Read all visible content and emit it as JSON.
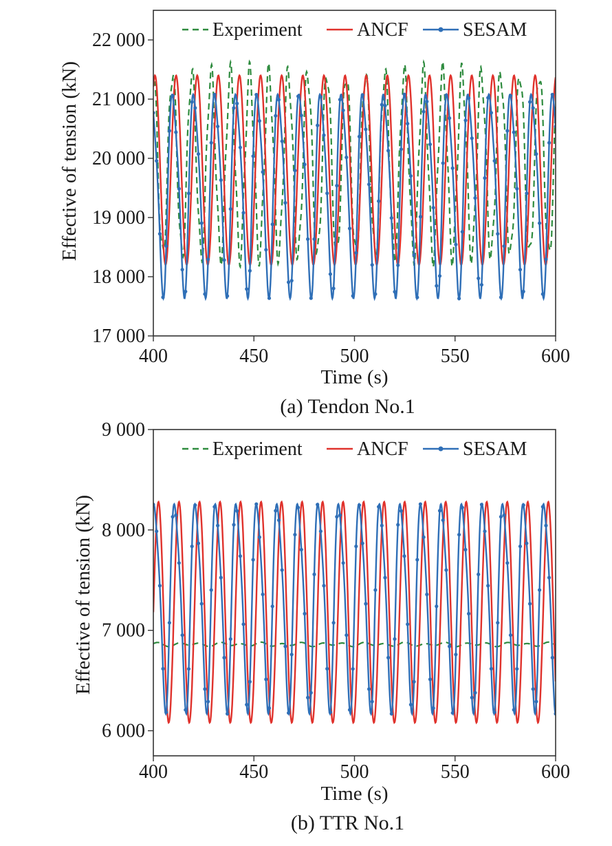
{
  "chart_data": [
    {
      "type": "line",
      "caption": "(a) Tendon No.1",
      "xlabel": "Time (s)",
      "ylabel": "Effective of tension (kN)",
      "xlim": [
        400,
        600
      ],
      "ylim": [
        17000,
        22500
      ],
      "xticks": [
        400,
        450,
        500,
        550,
        600
      ],
      "xtick_labels": [
        "400",
        "450",
        "500",
        "550",
        "600"
      ],
      "yticks": [
        17000,
        18000,
        19000,
        20000,
        21000,
        22000
      ],
      "ytick_labels": [
        "17 000",
        "18 000",
        "19 000",
        "20 000",
        "21 000",
        "22 000"
      ],
      "legend_position": "top",
      "series": [
        {
          "name": "Experiment",
          "style": "dashed",
          "color": "#2e8b3e",
          "mean": 19900,
          "amplitude": 1550,
          "period_s": 9.6,
          "phase_s": 2.5,
          "min": 18300,
          "max": 21500
        },
        {
          "name": "ANCF",
          "style": "solid",
          "color": "#e0322c",
          "mean": 19800,
          "amplitude": 1600,
          "period_s": 10.5,
          "phase_s": 1.8,
          "min": 18200,
          "max": 21400
        },
        {
          "name": "SESAM",
          "style": "solid-markers",
          "color": "#2f6fb7",
          "mean": 19500,
          "amplitude": 1650,
          "period_s": 10.5,
          "phase_s": 3.2,
          "min": 17900,
          "max": 21200
        }
      ]
    },
    {
      "type": "line",
      "caption": "(b) TTR No.1",
      "xlabel": "Time (s)",
      "ylabel": "Effective of tension (kN)",
      "xlim": [
        400,
        600
      ],
      "ylim": [
        5750,
        9000
      ],
      "xticks": [
        400,
        450,
        500,
        550,
        600
      ],
      "xtick_labels": [
        "400",
        "450",
        "500",
        "550",
        "600"
      ],
      "yticks": [
        6000,
        7000,
        8000,
        9000
      ],
      "ytick_labels": [
        "6 000",
        "7 000",
        "8 000",
        "9 000"
      ],
      "legend_position": "top",
      "series": [
        {
          "name": "Experiment",
          "style": "dashed",
          "color": "#2e8b3e",
          "mean": 6860,
          "amplitude": 15,
          "period_s": 10.2,
          "phase_s": 0.0,
          "min": 6845,
          "max": 6875
        },
        {
          "name": "ANCF",
          "style": "solid",
          "color": "#e0322c",
          "mean": 7180,
          "amplitude": 1100,
          "period_s": 10.2,
          "phase_s": 0.0,
          "min": 6080,
          "max": 8280
        },
        {
          "name": "SESAM",
          "style": "solid-markers",
          "color": "#2f6fb7",
          "mean": 7300,
          "amplitude": 1000,
          "period_s": 10.2,
          "phase_s": 1.8,
          "min": 6300,
          "max": 8300
        }
      ]
    }
  ]
}
